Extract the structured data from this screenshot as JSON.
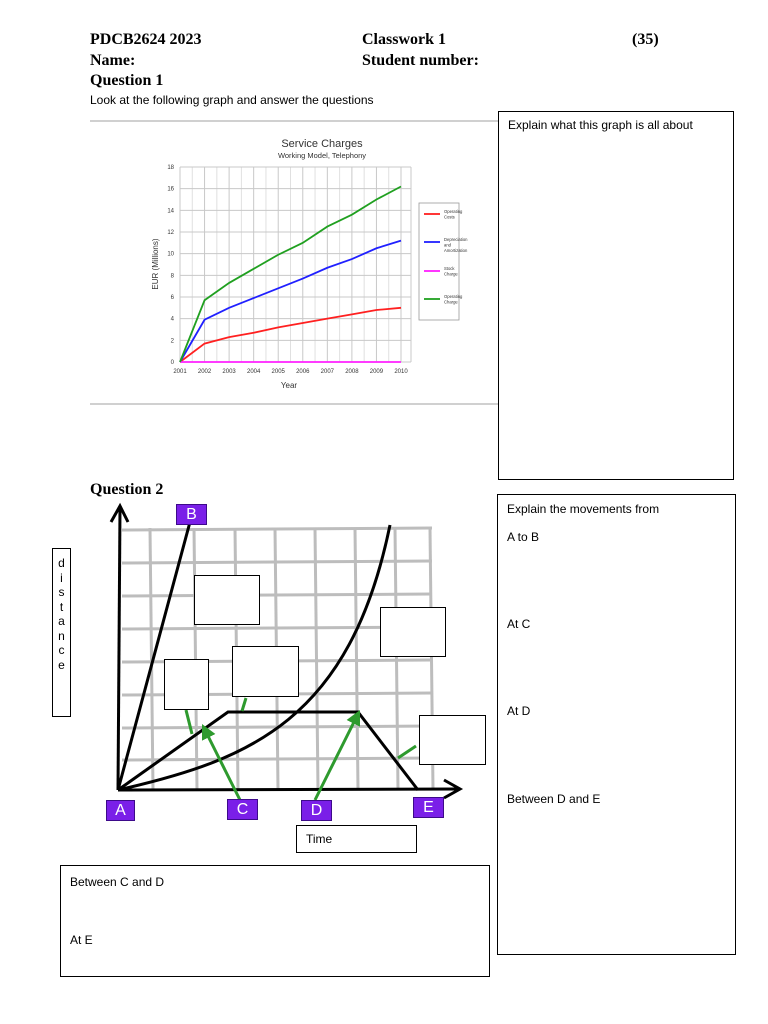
{
  "header": {
    "course": "PDCB2624  2023",
    "classwork": "Classwork 1",
    "marks": "(35)",
    "name_label": "Name:",
    "student_number_label": "Student number:"
  },
  "q1": {
    "title": "Question 1",
    "instruction": "Look at the following graph and answer the questions",
    "answer_prompt": "Explain what this graph is all about"
  },
  "chart_data": {
    "type": "line",
    "title": "Service Charges",
    "subtitle": "Working Model, Telephony",
    "xlabel": "Year",
    "ylabel": "EUR (Millions)",
    "categories": [
      "2001",
      "2002",
      "2003",
      "2004",
      "2005",
      "2006",
      "2007",
      "2008",
      "2009",
      "2010"
    ],
    "x": [
      2001,
      2002,
      2003,
      2004,
      2005,
      2006,
      2007,
      2008,
      2009,
      2010
    ],
    "ylim": [
      0,
      18
    ],
    "yticks": [
      0,
      2,
      4,
      6,
      8,
      10,
      12,
      14,
      16,
      18
    ],
    "grid": true,
    "legend_position": "right",
    "series": [
      {
        "name": "Operating Costs",
        "color": "#ff2020",
        "values": [
          0,
          1.7,
          2.3,
          2.7,
          3.2,
          3.6,
          4.0,
          4.4,
          4.8,
          5.0
        ]
      },
      {
        "name": "Depreciation and Amortization",
        "color": "#2020ff",
        "values": [
          0,
          3.9,
          5.0,
          5.9,
          6.8,
          7.7,
          8.7,
          9.5,
          10.5,
          11.2
        ]
      },
      {
        "name": "Stock Charge",
        "color": "#ff20ff",
        "values": [
          0,
          0,
          0,
          0,
          0,
          0,
          0,
          0,
          0,
          0
        ]
      },
      {
        "name": "Operating Charge",
        "color": "#20a020",
        "values": [
          0,
          5.7,
          7.3,
          8.6,
          9.9,
          11.0,
          12.5,
          13.6,
          15.0,
          16.2
        ]
      }
    ]
  },
  "q2": {
    "title": "Question 2",
    "y_axis_label": "distance",
    "x_axis_label": "Time",
    "points": {
      "a": "A",
      "b": "B",
      "c": "C",
      "d": "D",
      "e": "E"
    },
    "answer_prompt": "Explain the movements from",
    "a_to_b": "A to B",
    "at_c": "At C",
    "at_d": "At D",
    "between_d_e": "Between D and E",
    "between_c_d": "Between C and D",
    "at_e": "At E"
  }
}
